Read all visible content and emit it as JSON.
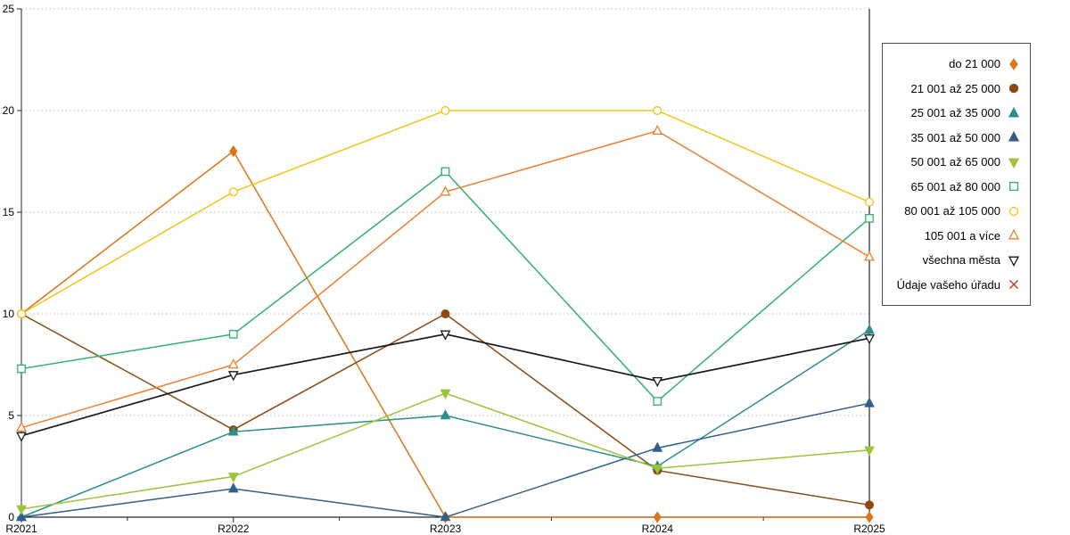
{
  "chart_data": {
    "type": "line",
    "title": "",
    "xlabel": "",
    "ylabel": "",
    "x_categories": [
      "R2021",
      "R2022",
      "R2023",
      "R2024",
      "R2025"
    ],
    "y_ticks": [
      0,
      5,
      10,
      15,
      20,
      25
    ],
    "ylim": [
      0,
      25
    ],
    "grid": "dotted-horizontal",
    "legend_position": "right",
    "series": [
      {
        "name": "do 21 000",
        "color": "#dd7418",
        "marker": "diamond",
        "filled": true,
        "values": [
          10,
          18,
          0,
          0,
          0
        ]
      },
      {
        "name": "21 001 až 25 000",
        "color": "#8b4a12",
        "marker": "circle",
        "filled": true,
        "values": [
          10,
          4.3,
          10,
          2.3,
          0.6
        ]
      },
      {
        "name": "25 001 až 35 000",
        "color": "#2d8c8c",
        "marker": "triangle-up",
        "filled": true,
        "values": [
          0,
          4.2,
          5,
          2.5,
          9.2
        ]
      },
      {
        "name": "35 001 až 50 000",
        "color": "#305f88",
        "marker": "triangle-up",
        "filled": true,
        "values": [
          0,
          1.4,
          0,
          3.4,
          5.6
        ]
      },
      {
        "name": "50 001 až 65 000",
        "color": "#9dc33b",
        "marker": "triangle-down",
        "filled": true,
        "values": [
          0.4,
          2,
          6.1,
          2.4,
          3.3
        ]
      },
      {
        "name": "65 001 až 80 000",
        "color": "#2eb06e",
        "marker": "square",
        "filled": false,
        "values": [
          7.3,
          9,
          17,
          5.7,
          14.7
        ]
      },
      {
        "name": "80 001 až 105 000",
        "color": "#f3c317",
        "marker": "circle",
        "filled": false,
        "values": [
          10,
          16,
          20,
          20,
          15.5
        ]
      },
      {
        "name": "105 001 a více",
        "color": "#ee7e30",
        "marker": "triangle-up",
        "filled": false,
        "values": [
          4.4,
          7.5,
          16,
          19,
          12.8
        ]
      },
      {
        "name": "všechna města",
        "color": "#1a1a1a",
        "marker": "triangle-down",
        "filled": false,
        "values": [
          4,
          7,
          9,
          6.7,
          8.8
        ]
      },
      {
        "name": "Údaje vašeho úřadu",
        "color": "#c0392b",
        "marker": "x",
        "filled": false,
        "values": [
          null,
          null,
          null,
          null,
          null
        ]
      }
    ]
  }
}
